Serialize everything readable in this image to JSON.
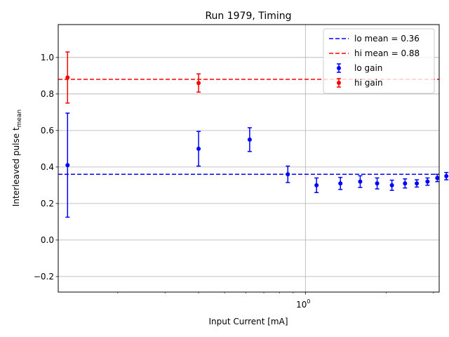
{
  "chart_data": {
    "type": "scatter",
    "title": "Run 1979, Timing",
    "xlabel": "Input Current [mA]",
    "ylabel": "Interleaved pulse t",
    "ylabel_subscript": "mean",
    "xscale": "log",
    "xlim": [
      0.12,
      3.15
    ],
    "ylim": [
      -0.285,
      1.18
    ],
    "x_ticks": [
      {
        "value": 1,
        "label": "10",
        "exponent": "0"
      }
    ],
    "y_ticks": [
      {
        "value": -0.2,
        "label": "−0.2"
      },
      {
        "value": 0.0,
        "label": "0.0"
      },
      {
        "value": 0.2,
        "label": "0.2"
      },
      {
        "value": 0.4,
        "label": "0.4"
      },
      {
        "value": 0.6,
        "label": "0.6"
      },
      {
        "value": 0.8,
        "label": "0.8"
      },
      {
        "value": 1.0,
        "label": "1.0"
      }
    ],
    "grid": true,
    "legend_position": "top-right",
    "hlines": [
      {
        "name": "lo mean = 0.36",
        "y": 0.36,
        "color": "#0000ff",
        "style": "dashed"
      },
      {
        "name": "hi mean = 0.88",
        "y": 0.88,
        "color": "#ff0000",
        "style": "dashed"
      }
    ],
    "series": [
      {
        "name": "lo gain",
        "color": "#0000ff",
        "points": [
          {
            "x": 0.13,
            "y": 0.41,
            "err": 0.285
          },
          {
            "x": 0.4,
            "y": 0.5,
            "err": 0.095
          },
          {
            "x": 0.62,
            "y": 0.55,
            "err": 0.065
          },
          {
            "x": 0.86,
            "y": 0.36,
            "err": 0.045
          },
          {
            "x": 1.1,
            "y": 0.3,
            "err": 0.04
          },
          {
            "x": 1.35,
            "y": 0.31,
            "err": 0.033
          },
          {
            "x": 1.6,
            "y": 0.32,
            "err": 0.032
          },
          {
            "x": 1.85,
            "y": 0.31,
            "err": 0.03
          },
          {
            "x": 2.1,
            "y": 0.3,
            "err": 0.028
          },
          {
            "x": 2.35,
            "y": 0.31,
            "err": 0.025
          },
          {
            "x": 2.6,
            "y": 0.31,
            "err": 0.02
          },
          {
            "x": 2.85,
            "y": 0.32,
            "err": 0.02
          },
          {
            "x": 3.1,
            "y": 0.34,
            "err": 0.02
          },
          {
            "x": 3.35,
            "y": 0.35,
            "err": 0.02
          },
          {
            "x": 3.6,
            "y": 0.36,
            "err": 0.02
          }
        ]
      },
      {
        "name": "hi gain",
        "color": "#ff0000",
        "points": [
          {
            "x": 0.13,
            "y": 0.89,
            "err": 0.14
          },
          {
            "x": 0.4,
            "y": 0.86,
            "err": 0.05
          }
        ]
      }
    ]
  }
}
